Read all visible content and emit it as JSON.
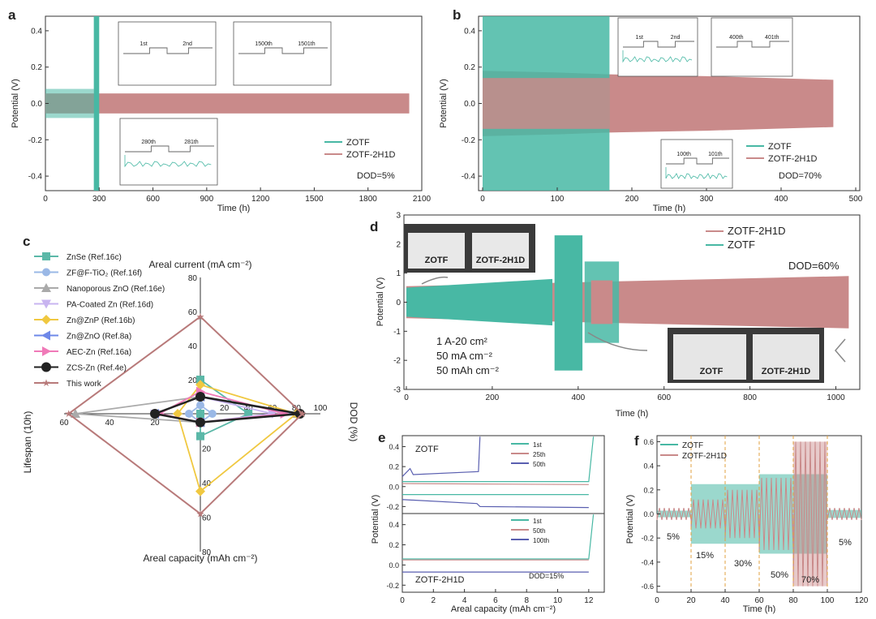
{
  "colors": {
    "teal": "#48b8a4",
    "rose": "#c98a8a",
    "axis": "#333333"
  },
  "panels": {
    "a": {
      "label": "a",
      "ylabel": "Potential (V)",
      "xlabel": "Time (h)",
      "legend": [
        "ZOTF",
        "ZOTF-2H1D"
      ],
      "dod": "DOD=5%",
      "xticks": [
        "0",
        "300",
        "600",
        "900",
        "1200",
        "1500",
        "1800",
        "2100"
      ],
      "yticks": [
        "0.4",
        "0.2",
        "0.0",
        "-0.2",
        "-0.4"
      ],
      "insets": [
        [
          "1st",
          "2nd"
        ],
        [
          "1500th",
          "1501th"
        ],
        [
          "280th",
          "281th"
        ]
      ]
    },
    "b": {
      "label": "b",
      "ylabel": "Potential (V)",
      "xlabel": "Time (h)",
      "legend": [
        "ZOTF",
        "ZOTF-2H1D"
      ],
      "dod": "DOD=70%",
      "xticks": [
        "0",
        "100",
        "200",
        "300",
        "400",
        "500"
      ],
      "yticks": [
        "0.4",
        "0.2",
        "0.0",
        "-0.2",
        "-0.4"
      ],
      "insets": [
        [
          "1st",
          "2nd"
        ],
        [
          "400th",
          "401th"
        ],
        [
          "100th",
          "101th"
        ]
      ]
    },
    "c": {
      "label": "c",
      "top_axis": "Areal current (mA cm⁻²)",
      "bottom_axis": "Areal capacity (mAh cm⁻²)",
      "left_axis": "Lifespan (10h)",
      "right_axis": "DOD (%)",
      "up_ticks": [
        "80",
        "60",
        "40",
        "20"
      ],
      "down_ticks": [
        "20",
        "40",
        "60",
        "80"
      ],
      "left_ticks": [
        "60",
        "40",
        "20"
      ],
      "right_ticks": [
        "20",
        "40",
        "60",
        "80",
        "100"
      ],
      "legend": [
        "ZnSe (Ref.16c)",
        "ZF@F-TiO₂ (Ref.16f)",
        "Nanoporous ZnO (Ref.16e)",
        "PA-Coated Zn (Ref.16d)",
        "Zn@ZnP (Ref.16b)",
        "Zn@ZnO (Ref.8a)",
        "AEC-Zn (Ref.16a)",
        "ZCS-Zn (Ref.4e)",
        "This work"
      ]
    },
    "d": {
      "label": "d",
      "ylabel": "Potential (V)",
      "xlabel": "Time (h)",
      "legend": [
        "ZOTF-2H1D",
        "ZOTF"
      ],
      "dod": "DOD=60%",
      "xticks": [
        "0",
        "200",
        "400",
        "600",
        "800",
        "1000"
      ],
      "yticks": [
        "3",
        "2",
        "1",
        "0",
        "-1",
        "-2",
        "-3"
      ],
      "notes": [
        "1 A-20 cm²",
        "50 mA cm⁻²",
        "50 mAh cm⁻²"
      ],
      "photo_labels": [
        "ZOTF",
        "ZOTF-2H1D"
      ]
    },
    "e": {
      "label": "e",
      "ylabel": "Potential (V)",
      "xlabel": "Areal capacity (mAh cm⁻²)",
      "top_title": "ZOTF",
      "bottom_title": "ZOTF-2H1D",
      "dod": "DOD=15%",
      "top_legend": [
        "1st",
        "25th",
        "50th"
      ],
      "bottom_legend": [
        "1st",
        "50th",
        "100th"
      ],
      "xticks": [
        "0",
        "2",
        "4",
        "6",
        "8",
        "10",
        "12"
      ],
      "top_yticks": [
        "0.4",
        "0.2",
        "0.0",
        "-0.2"
      ],
      "bottom_yticks": [
        "0.4",
        "0.2",
        "0.0",
        "-0.2"
      ]
    },
    "f": {
      "label": "f",
      "ylabel": "Potential (V)",
      "xlabel": "Time (h)",
      "legend": [
        "ZOTF",
        "ZOTF-2H1D"
      ],
      "xticks": [
        "0",
        "20",
        "40",
        "60",
        "80",
        "100",
        "120"
      ],
      "yticks": [
        "0.6",
        "0.4",
        "0.2",
        "0.0",
        "-0.2",
        "-0.4",
        "-0.6"
      ],
      "stage_labels": [
        "5%",
        "15%",
        "30%",
        "50%",
        "70%",
        "5%"
      ]
    }
  },
  "chart_data": [
    {
      "type": "line",
      "panel": "a",
      "xlim": [
        0,
        2100
      ],
      "ylim": [
        -0.48,
        0.48
      ],
      "series": [
        {
          "name": "ZOTF",
          "x": [
            0,
            250,
            270,
            300
          ],
          "y_max": [
            0.06,
            0.08,
            0.45,
            0.45
          ]
        },
        {
          "name": "ZOTF-2H1D",
          "x": [
            0,
            2030
          ],
          "y_max": [
            0.055,
            0.055
          ]
        }
      ]
    },
    {
      "type": "line",
      "panel": "b",
      "xlim": [
        0,
        500
      ],
      "ylim": [
        -0.48,
        0.48
      ],
      "series": [
        {
          "name": "ZOTF",
          "x": [
            0,
            170
          ],
          "y_max": [
            0.48,
            0.48
          ]
        },
        {
          "name": "ZOTF-2H1D",
          "x": [
            0,
            100,
            170,
            300,
            470
          ],
          "y_max": [
            0.18,
            0.17,
            0.16,
            0.15,
            0.13
          ]
        }
      ]
    },
    {
      "type": "radar",
      "panel": "c",
      "axes": [
        "Areal current",
        "DOD",
        "Areal capacity",
        "Lifespan"
      ],
      "series": [
        {
          "name": "ZnSe (Ref.16c)",
          "values": [
            20,
            40,
            13,
            0
          ]
        },
        {
          "name": "ZF@F-TiO₂ (Ref.16f)",
          "values": [
            5,
            10,
            5,
            5
          ]
        },
        {
          "name": "Nanoporous ZnO (Ref.16e)",
          "values": [
            10,
            80,
            5,
            55
          ]
        },
        {
          "name": "PA-Coated Zn (Ref.16d)",
          "values": [
            10,
            60,
            5,
            20
          ]
        },
        {
          "name": "Zn@ZnP (Ref.16b)",
          "values": [
            17,
            80,
            45,
            10
          ]
        },
        {
          "name": "Zn@ZnO (Ref.8a)",
          "values": [
            10,
            80,
            5,
            20
          ]
        },
        {
          "name": "AEC-Zn (Ref.16a)",
          "values": [
            13,
            70,
            5,
            18
          ]
        },
        {
          "name": "ZCS-Zn (Ref.4e)",
          "values": [
            10,
            83,
            5,
            20
          ]
        },
        {
          "name": "This work",
          "values": [
            57,
            85,
            58,
            58
          ]
        }
      ]
    },
    {
      "type": "line",
      "panel": "d",
      "xlim": [
        0,
        1050
      ],
      "ylim": [
        -3,
        3
      ],
      "series": [
        {
          "name": "ZOTF-2H1D",
          "x": [
            0,
            1030
          ],
          "y_max": [
            0.6,
            0.95
          ]
        },
        {
          "name": "ZOTF",
          "x": [
            0,
            340,
            370,
            500
          ],
          "y_max": [
            0.5,
            0.8,
            2.3,
            1.4
          ]
        }
      ]
    },
    {
      "type": "line",
      "panel": "e",
      "xlim": [
        0,
        13
      ],
      "series": [
        {
          "name": "1st"
        },
        {
          "name": "25th"
        },
        {
          "name": "50th"
        },
        {
          "name": "1st"
        },
        {
          "name": "50th"
        },
        {
          "name": "100th"
        }
      ]
    },
    {
      "type": "line",
      "panel": "f",
      "xlim": [
        0,
        120
      ],
      "ylim": [
        -0.65,
        0.65
      ],
      "stages": [
        {
          "from": 0,
          "to": 20,
          "dod": "5%"
        },
        {
          "from": 20,
          "to": 40,
          "dod": "15%"
        },
        {
          "from": 40,
          "to": 60,
          "dod": "30%"
        },
        {
          "from": 60,
          "to": 80,
          "dod": "50%"
        },
        {
          "from": 80,
          "to": 100,
          "dod": "70%"
        },
        {
          "from": 100,
          "to": 120,
          "dod": "5%"
        }
      ],
      "series": [
        {
          "name": "ZOTF"
        },
        {
          "name": "ZOTF-2H1D"
        }
      ]
    }
  ]
}
